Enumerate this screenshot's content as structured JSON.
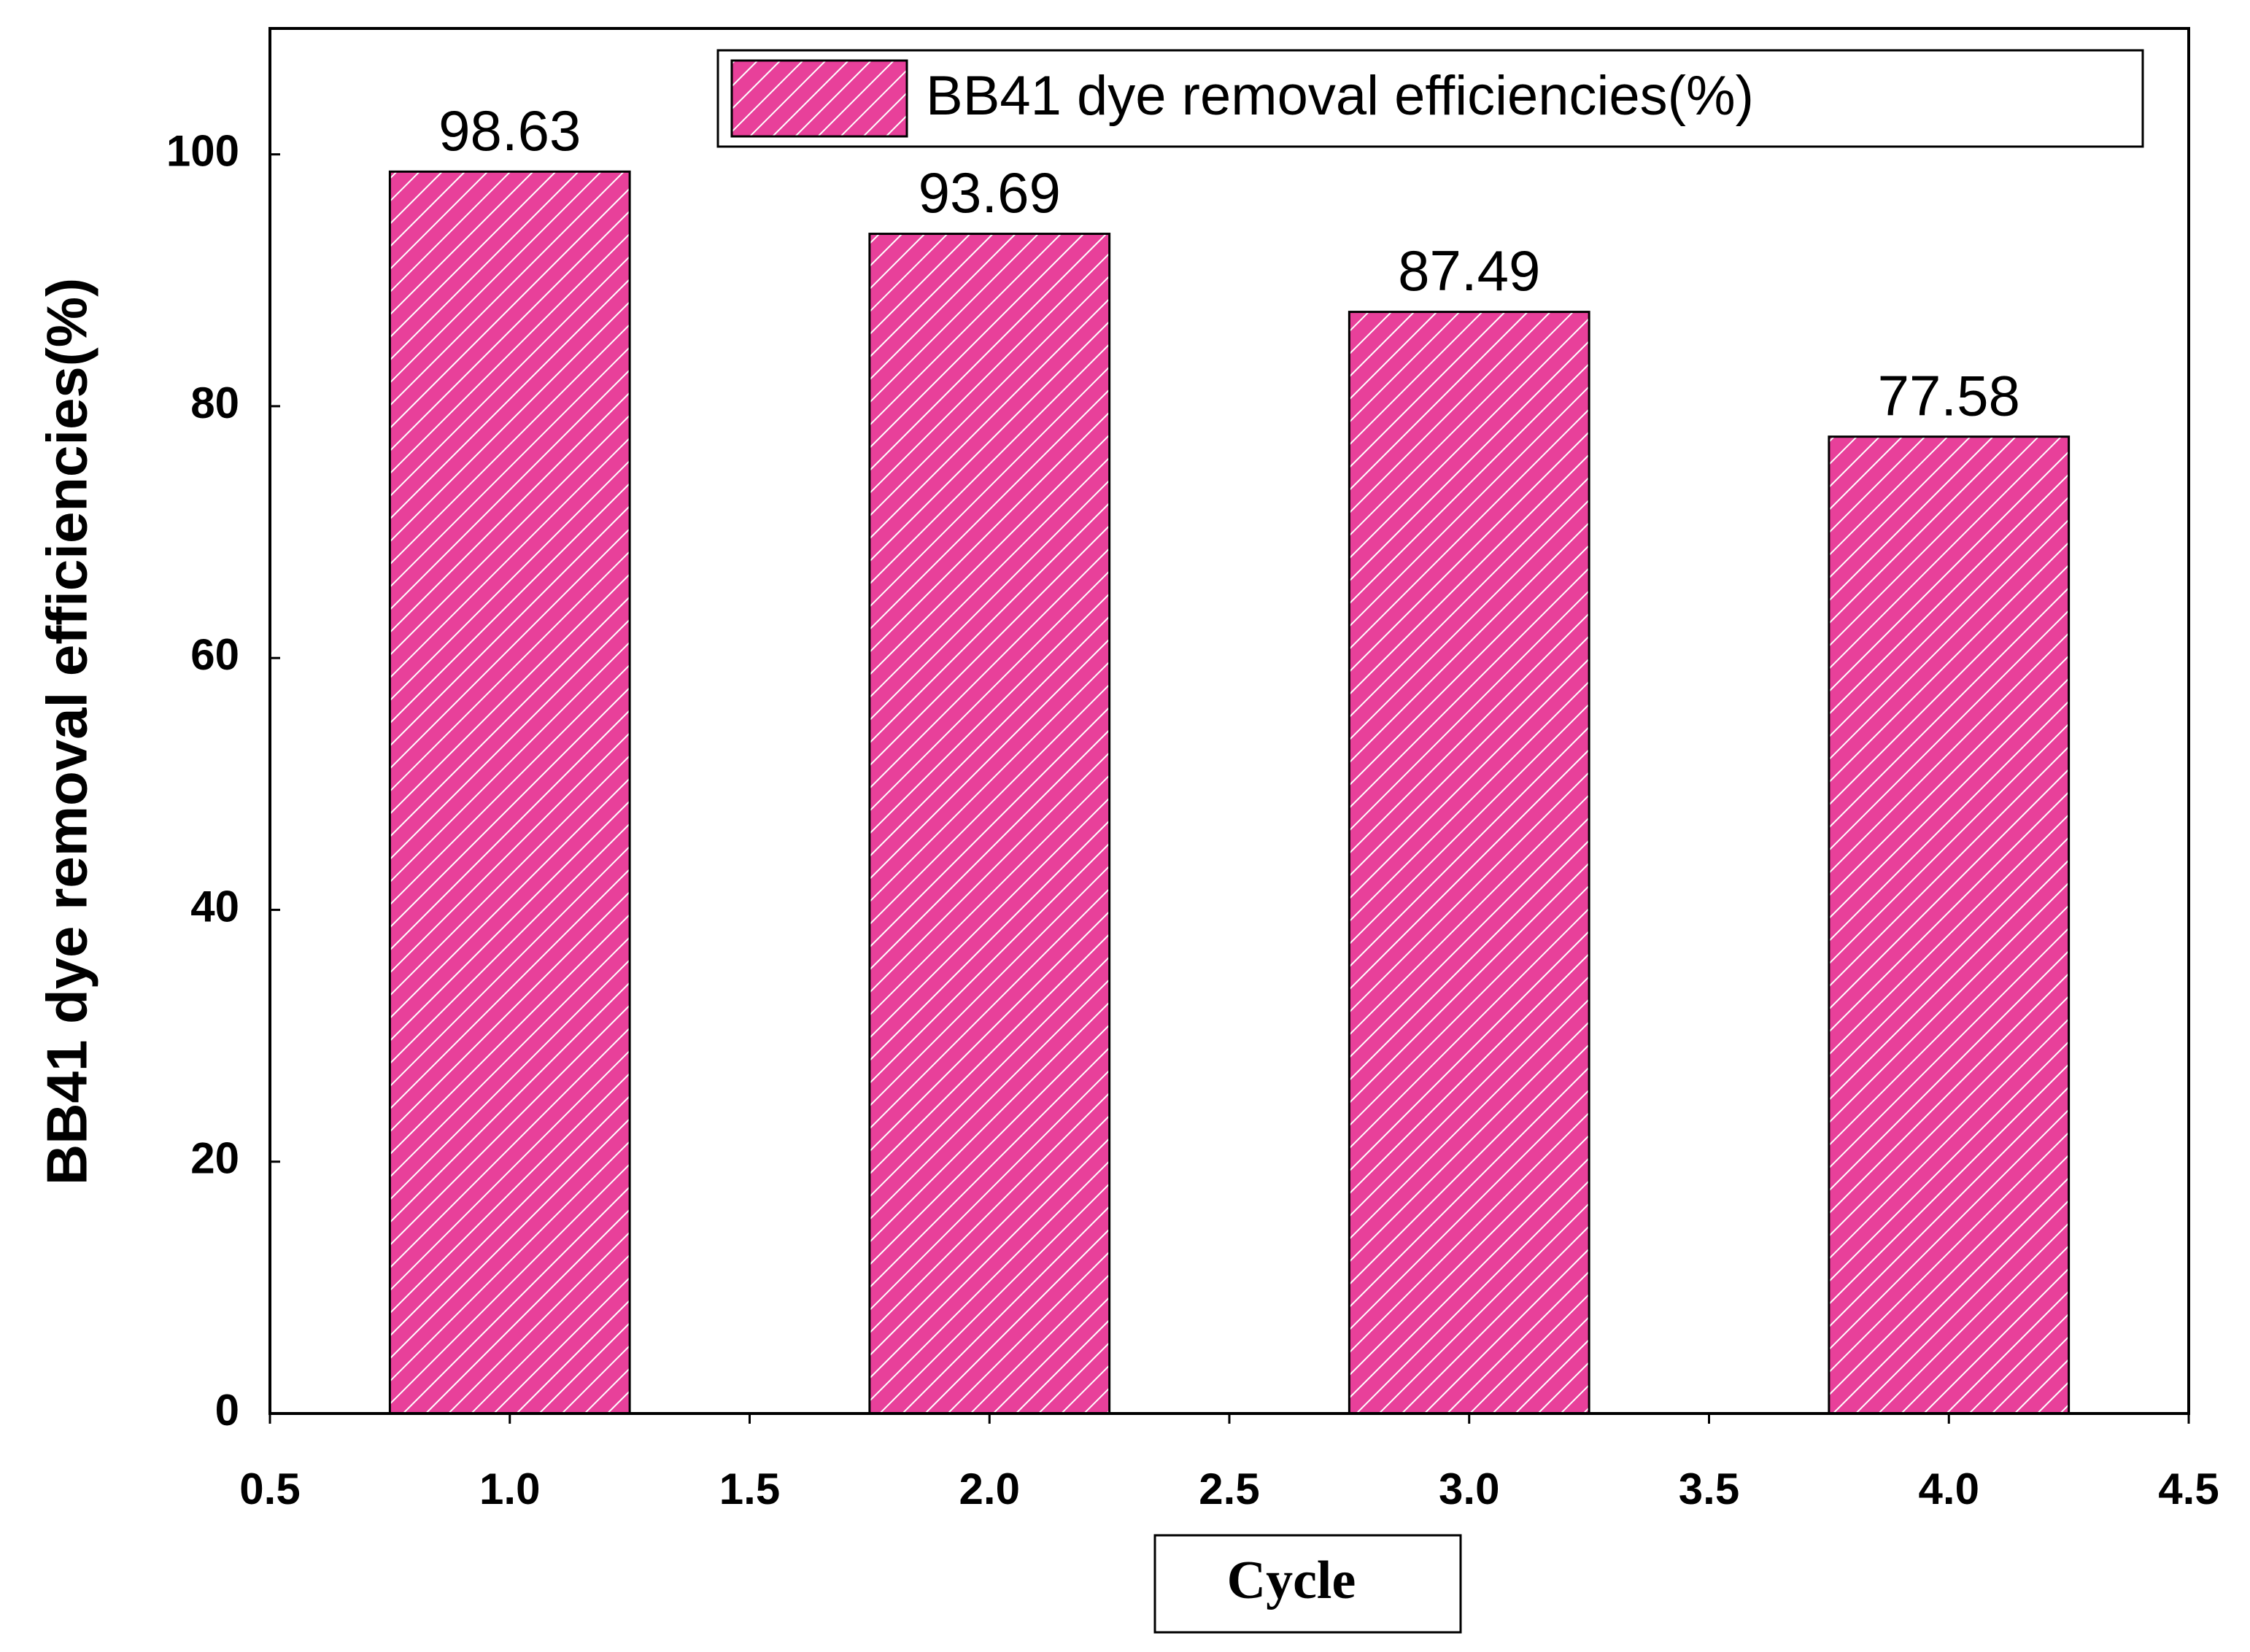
{
  "chart_data": {
    "type": "bar",
    "x_label": "Cycle",
    "y_label": "BB41 dye removal efficiencies(%)",
    "x": [
      1,
      2,
      3,
      4
    ],
    "series": [
      {
        "name": "BB41 dye removal efficiencies(%)",
        "color": "#e8409a",
        "values": [
          98.63,
          93.69,
          87.49,
          77.58
        ]
      }
    ],
    "xlim": [
      0.5,
      4.5
    ],
    "xticks": [
      0.5,
      {
        "value": 1,
        "label": "1.0"
      },
      1.5,
      {
        "value": 2,
        "label": "2.0"
      },
      2.5,
      {
        "value": 3,
        "label": "3.0"
      },
      3.5,
      {
        "value": 4,
        "label": "4.0"
      },
      4.5
    ],
    "ylim": [
      0,
      110
    ],
    "yticks": [
      0,
      20,
      40,
      60,
      80,
      100
    ],
    "legend": "top-right",
    "grid": false
  }
}
